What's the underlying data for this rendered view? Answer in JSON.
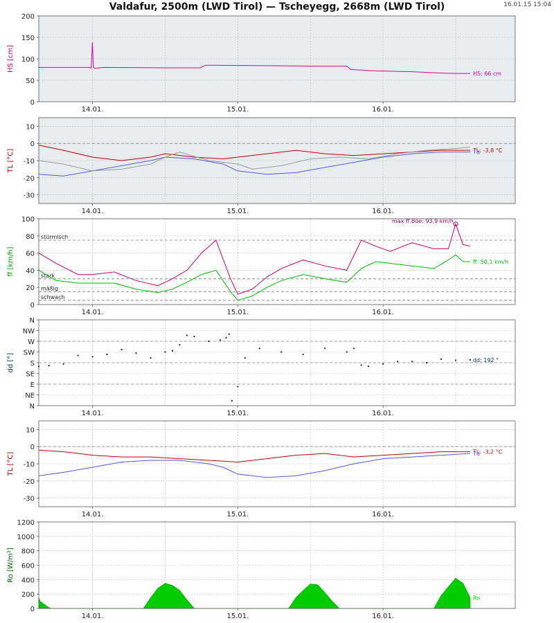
{
  "page": {
    "title": "Valdafur, 2500m (LWD Tirol) — Tscheyegg, 2668m (LWD Tirol)",
    "timestamp": "16.01.15 15:04"
  },
  "chart_data": [
    {
      "id": "hs",
      "type": "line",
      "ylabel": "HS [cm]",
      "ylabel_color": "#cc0077",
      "ylim": [
        0,
        200
      ],
      "yticks": [
        0,
        50,
        100,
        150,
        200
      ],
      "xlim": [
        -0.37,
        2.91
      ],
      "xticks": [
        0,
        1,
        2
      ],
      "xtick_labels": [
        "14.01.",
        "15.01.",
        "16.01."
      ],
      "grid": true,
      "background": "#e8ecef",
      "series": [
        {
          "name": "HS",
          "color": "#dd0088",
          "label": "HS: 66 cm",
          "x": [
            -0.37,
            -0.02,
            -0.01,
            0.0,
            0.005,
            0.015,
            0.08,
            0.5,
            0.74,
            0.78,
            0.82,
            1.2,
            1.5,
            1.75,
            1.78,
            1.95,
            2.2,
            2.4,
            2.5,
            2.6
          ],
          "values": [
            80,
            80,
            78,
            138,
            80,
            78,
            80,
            79,
            79,
            85,
            85,
            84,
            83,
            83,
            75,
            72,
            70,
            67,
            66,
            66
          ]
        }
      ]
    },
    {
      "id": "tl1",
      "type": "line",
      "ylabel": "TL [°C]",
      "ylabel_color": "#aa0000",
      "ylim": [
        -35,
        15
      ],
      "yticks": [
        -30,
        -20,
        -10,
        0,
        10
      ],
      "xlim": [
        -0.37,
        2.91
      ],
      "xticks": [
        0,
        1,
        2
      ],
      "xtick_labels": [
        "14.01.",
        "15.01.",
        "16.01."
      ],
      "grid": true,
      "ref_lines": [
        0
      ],
      "background": "#e8ecef",
      "series": [
        {
          "name": "TL",
          "color": "#bb0000",
          "label": "TL: -3,8 °C",
          "x": [
            -0.37,
            -0.2,
            0.0,
            0.2,
            0.4,
            0.5,
            0.7,
            0.9,
            1.0,
            1.2,
            1.4,
            1.6,
            1.8,
            2.0,
            2.2,
            2.4,
            2.6
          ],
          "values": [
            -1,
            -4,
            -8,
            -10,
            -8,
            -6,
            -8,
            -9,
            -8,
            -6,
            -4,
            -6,
            -7,
            -6,
            -5,
            -4,
            -4
          ]
        },
        {
          "name": "Td",
          "color": "#5555ee",
          "label": "Td",
          "x": [
            -0.37,
            -0.2,
            0.0,
            0.2,
            0.4,
            0.5,
            0.7,
            0.9,
            1.0,
            1.2,
            1.4,
            1.6,
            1.8,
            2.0,
            2.2,
            2.4,
            2.6
          ],
          "values": [
            -18,
            -19,
            -16,
            -13,
            -10,
            -8,
            -9,
            -12,
            -16,
            -18,
            -17,
            -14,
            -11,
            -8,
            -6,
            -5,
            -5
          ]
        },
        {
          "name": "",
          "color": "#999999",
          "x": [
            -0.37,
            -0.2,
            0.0,
            0.2,
            0.4,
            0.5,
            0.6,
            0.8,
            1.0,
            1.1,
            1.3,
            1.5,
            1.7,
            1.9,
            2.1,
            2.3,
            2.5,
            2.6
          ],
          "values": [
            -10,
            -12,
            -16,
            -15,
            -12,
            -8,
            -5,
            -10,
            -12,
            -15,
            -13,
            -9,
            -8,
            -9,
            -6,
            -4,
            -3,
            -2
          ]
        }
      ]
    },
    {
      "id": "ff",
      "type": "line",
      "ylabel": "ff [km/h]",
      "ylabel_color": "#009900",
      "ylim": [
        0,
        100
      ],
      "yticks": [
        0,
        20,
        40,
        60,
        80,
        100
      ],
      "xlim": [
        -0.37,
        2.91
      ],
      "xticks": [
        0,
        1,
        2
      ],
      "xtick_labels": [
        "14.01.",
        "15.01.",
        "16.01."
      ],
      "grid": true,
      "thresholds": [
        {
          "value": 75,
          "label": "stürmisch"
        },
        {
          "value": 30,
          "label": "stark"
        },
        {
          "value": 15,
          "label": "mäßig"
        },
        {
          "value": 5,
          "label": "schwach"
        }
      ],
      "annotation": {
        "text": "max ff.Böe: 93,9 km/h",
        "x": 2.5,
        "y": 93.9,
        "color": "#aa0066"
      },
      "background": "#ffffff",
      "series": [
        {
          "name": "ff.Böe",
          "color": "#cc0066",
          "x": [
            -0.37,
            -0.25,
            -0.1,
            0.0,
            0.15,
            0.3,
            0.45,
            0.55,
            0.65,
            0.75,
            0.85,
            0.95,
            1.0,
            1.1,
            1.2,
            1.3,
            1.45,
            1.6,
            1.75,
            1.85,
            1.95,
            2.05,
            2.2,
            2.35,
            2.45,
            2.5,
            2.55,
            2.6
          ],
          "values": [
            60,
            48,
            35,
            35,
            38,
            28,
            22,
            30,
            40,
            60,
            75,
            30,
            12,
            18,
            32,
            42,
            52,
            45,
            40,
            75,
            68,
            62,
            72,
            65,
            65,
            94,
            70,
            68
          ]
        },
        {
          "name": "ff",
          "color": "#00bb00",
          "label": "ff: 50,1 km/h",
          "x": [
            -0.37,
            -0.25,
            -0.1,
            0.0,
            0.15,
            0.3,
            0.45,
            0.55,
            0.65,
            0.75,
            0.85,
            0.95,
            1.0,
            1.1,
            1.2,
            1.3,
            1.45,
            1.6,
            1.75,
            1.85,
            1.95,
            2.05,
            2.2,
            2.35,
            2.45,
            2.5,
            2.55,
            2.6
          ],
          "values": [
            40,
            28,
            25,
            25,
            25,
            18,
            14,
            18,
            26,
            35,
            40,
            15,
            5,
            10,
            20,
            28,
            35,
            30,
            26,
            42,
            50,
            48,
            45,
            42,
            52,
            58,
            50,
            50
          ]
        }
      ]
    },
    {
      "id": "dd",
      "type": "scatter",
      "ylabel": "dd [°]",
      "ylabel_color": "#003344",
      "ylim": [
        0,
        360
      ],
      "yticks": [
        0,
        45,
        90,
        135,
        180,
        225,
        270,
        315,
        360
      ],
      "ytick_labels": [
        "N",
        "NE",
        "E",
        "SE",
        "S",
        "SW",
        "W",
        "NW",
        "N"
      ],
      "dashed_lines": [
        90,
        180,
        270
      ],
      "xlim": [
        -0.37,
        2.91
      ],
      "xticks": [
        0,
        1,
        2
      ],
      "xtick_labels": [
        "14.01.",
        "15.01.",
        "16.01."
      ],
      "grid": true,
      "background": "#ffffff",
      "series": [
        {
          "name": "dd",
          "color": "#003344",
          "label": "dd: 192 °",
          "x": [
            -0.37,
            -0.3,
            -0.2,
            -0.1,
            0.0,
            0.1,
            0.2,
            0.3,
            0.4,
            0.5,
            0.55,
            0.6,
            0.65,
            0.7,
            0.8,
            0.88,
            0.92,
            0.94,
            0.96,
            1.0,
            1.05,
            1.15,
            1.3,
            1.45,
            1.6,
            1.75,
            1.8,
            1.85,
            1.9,
            2.0,
            2.1,
            2.2,
            2.3,
            2.4,
            2.5,
            2.6
          ],
          "values": [
            165,
            168,
            175,
            210,
            205,
            215,
            235,
            220,
            200,
            225,
            230,
            255,
            295,
            290,
            270,
            275,
            285,
            300,
            20,
            80,
            200,
            240,
            225,
            215,
            240,
            225,
            240,
            170,
            165,
            175,
            185,
            185,
            180,
            195,
            190,
            192
          ]
        }
      ]
    },
    {
      "id": "tl2",
      "type": "line",
      "ylabel": "TL [°C]",
      "ylabel_color": "#aa0000",
      "ylim": [
        -35,
        15
      ],
      "yticks": [
        -30,
        -20,
        -10,
        0,
        10
      ],
      "xlim": [
        -0.37,
        2.91
      ],
      "xticks": [
        0,
        1,
        2
      ],
      "xtick_labels": [
        "14.01.",
        "15.01.",
        "16.01."
      ],
      "grid": true,
      "ref_lines": [
        0
      ],
      "background": "#ffffff",
      "series": [
        {
          "name": "TL",
          "color": "#bb0000",
          "label": "TL: -3,2 °C",
          "x": [
            -0.37,
            -0.2,
            0.0,
            0.2,
            0.4,
            0.6,
            0.8,
            1.0,
            1.2,
            1.4,
            1.6,
            1.8,
            2.0,
            2.2,
            2.4,
            2.6
          ],
          "values": [
            -2,
            -3,
            -5,
            -6,
            -6,
            -7,
            -8,
            -9,
            -7,
            -5,
            -4,
            -6,
            -5,
            -4,
            -3,
            -3
          ]
        },
        {
          "name": "Td",
          "color": "#5555ee",
          "label": "Td",
          "x": [
            -0.37,
            -0.2,
            0.0,
            0.2,
            0.4,
            0.6,
            0.8,
            0.9,
            1.0,
            1.2,
            1.4,
            1.6,
            1.8,
            2.0,
            2.2,
            2.4,
            2.6
          ],
          "values": [
            -17,
            -15,
            -12,
            -9,
            -8,
            -8,
            -10,
            -12,
            -16,
            -18,
            -17,
            -14,
            -10,
            -7,
            -6,
            -5,
            -4
          ]
        }
      ]
    },
    {
      "id": "ro",
      "type": "area",
      "ylabel": "Ro [W/m²]",
      "ylabel_color": "#006600",
      "ylim": [
        0,
        1200
      ],
      "yticks": [
        0,
        200,
        400,
        600,
        800,
        1000,
        1200
      ],
      "xlim": [
        -0.37,
        2.91
      ],
      "xticks": [
        0,
        1,
        2
      ],
      "xtick_labels": [
        "14.01.",
        "15.01.",
        "16.01."
      ],
      "grid": true,
      "background": "#ffffff",
      "series": [
        {
          "name": "Ro",
          "color": "#00cc00",
          "label": "Ro",
          "x": [
            -0.37,
            -0.36,
            -0.32,
            -0.3,
            -0.28,
            0.35,
            0.4,
            0.45,
            0.5,
            0.55,
            0.6,
            0.65,
            0.7,
            1.35,
            1.4,
            1.45,
            1.5,
            1.55,
            1.6,
            1.65,
            1.7,
            2.35,
            2.4,
            2.45,
            2.5,
            2.55,
            2.6
          ],
          "values": [
            150,
            100,
            40,
            10,
            0,
            0,
            150,
            280,
            350,
            320,
            250,
            120,
            0,
            0,
            150,
            250,
            340,
            330,
            220,
            100,
            0,
            0,
            180,
            300,
            420,
            350,
            150
          ]
        }
      ]
    }
  ]
}
